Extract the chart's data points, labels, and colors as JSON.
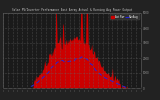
{
  "title": "Solar PV/Inverter Performance East Array Actual & Running Avg Power Output",
  "bg_color": "#222222",
  "plot_bg_color": "#1a1a1a",
  "grid_color": "#555555",
  "bar_color": "#cc0000",
  "avg_color": "#2222dd",
  "ylim": [
    0,
    5000
  ],
  "y_max": 5000,
  "legend_items": [
    {
      "label": "Act Pwr",
      "color": "#cc0000",
      "type": "bar"
    },
    {
      "label": "RunAvg",
      "color": "#2222dd",
      "type": "line"
    }
  ],
  "title_color": "#cccccc",
  "axis_color": "#999999",
  "tick_color": "#999999"
}
